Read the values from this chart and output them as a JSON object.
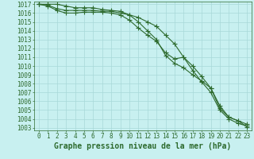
{
  "title": "Graphe pression niveau de la mer (hPa)",
  "xlabel_hours": [
    0,
    1,
    2,
    3,
    4,
    5,
    6,
    7,
    8,
    9,
    10,
    11,
    12,
    13,
    14,
    15,
    16,
    17,
    18,
    19,
    20,
    21,
    22,
    23
  ],
  "series1": [
    1017.0,
    1016.8,
    1016.3,
    1016.0,
    1016.0,
    1016.1,
    1016.1,
    1016.1,
    1016.0,
    1015.8,
    1015.2,
    1014.3,
    1013.5,
    1012.8,
    1011.5,
    1010.8,
    1011.0,
    1009.5,
    1008.2,
    1007.0,
    1005.0,
    1004.0,
    1003.5,
    1003.2
  ],
  "series2": [
    1017.0,
    1016.9,
    1016.5,
    1016.3,
    1016.3,
    1016.3,
    1016.3,
    1016.2,
    1016.2,
    1016.0,
    1015.8,
    1015.5,
    1015.0,
    1014.5,
    1013.5,
    1012.5,
    1011.0,
    1010.0,
    1008.8,
    1007.5,
    1005.5,
    1004.2,
    1003.8,
    1003.4
  ],
  "series3": [
    1017.0,
    1017.0,
    1017.0,
    1016.8,
    1016.6,
    1016.6,
    1016.6,
    1016.4,
    1016.3,
    1016.2,
    1015.8,
    1015.0,
    1014.0,
    1013.0,
    1011.2,
    1010.3,
    1009.8,
    1009.0,
    1008.3,
    1007.5,
    1005.2,
    1004.2,
    1003.8,
    1003.1
  ],
  "line_color": "#2d6a2d",
  "bg_color": "#c8f0f0",
  "grid_color": "#a8d8d8",
  "ylim_min": 1003,
  "ylim_max": 1017,
  "ytick_step": 1,
  "marker": "+",
  "marker_size": 4,
  "linewidth": 0.8,
  "title_fontsize": 7,
  "tick_fontsize": 5.5
}
